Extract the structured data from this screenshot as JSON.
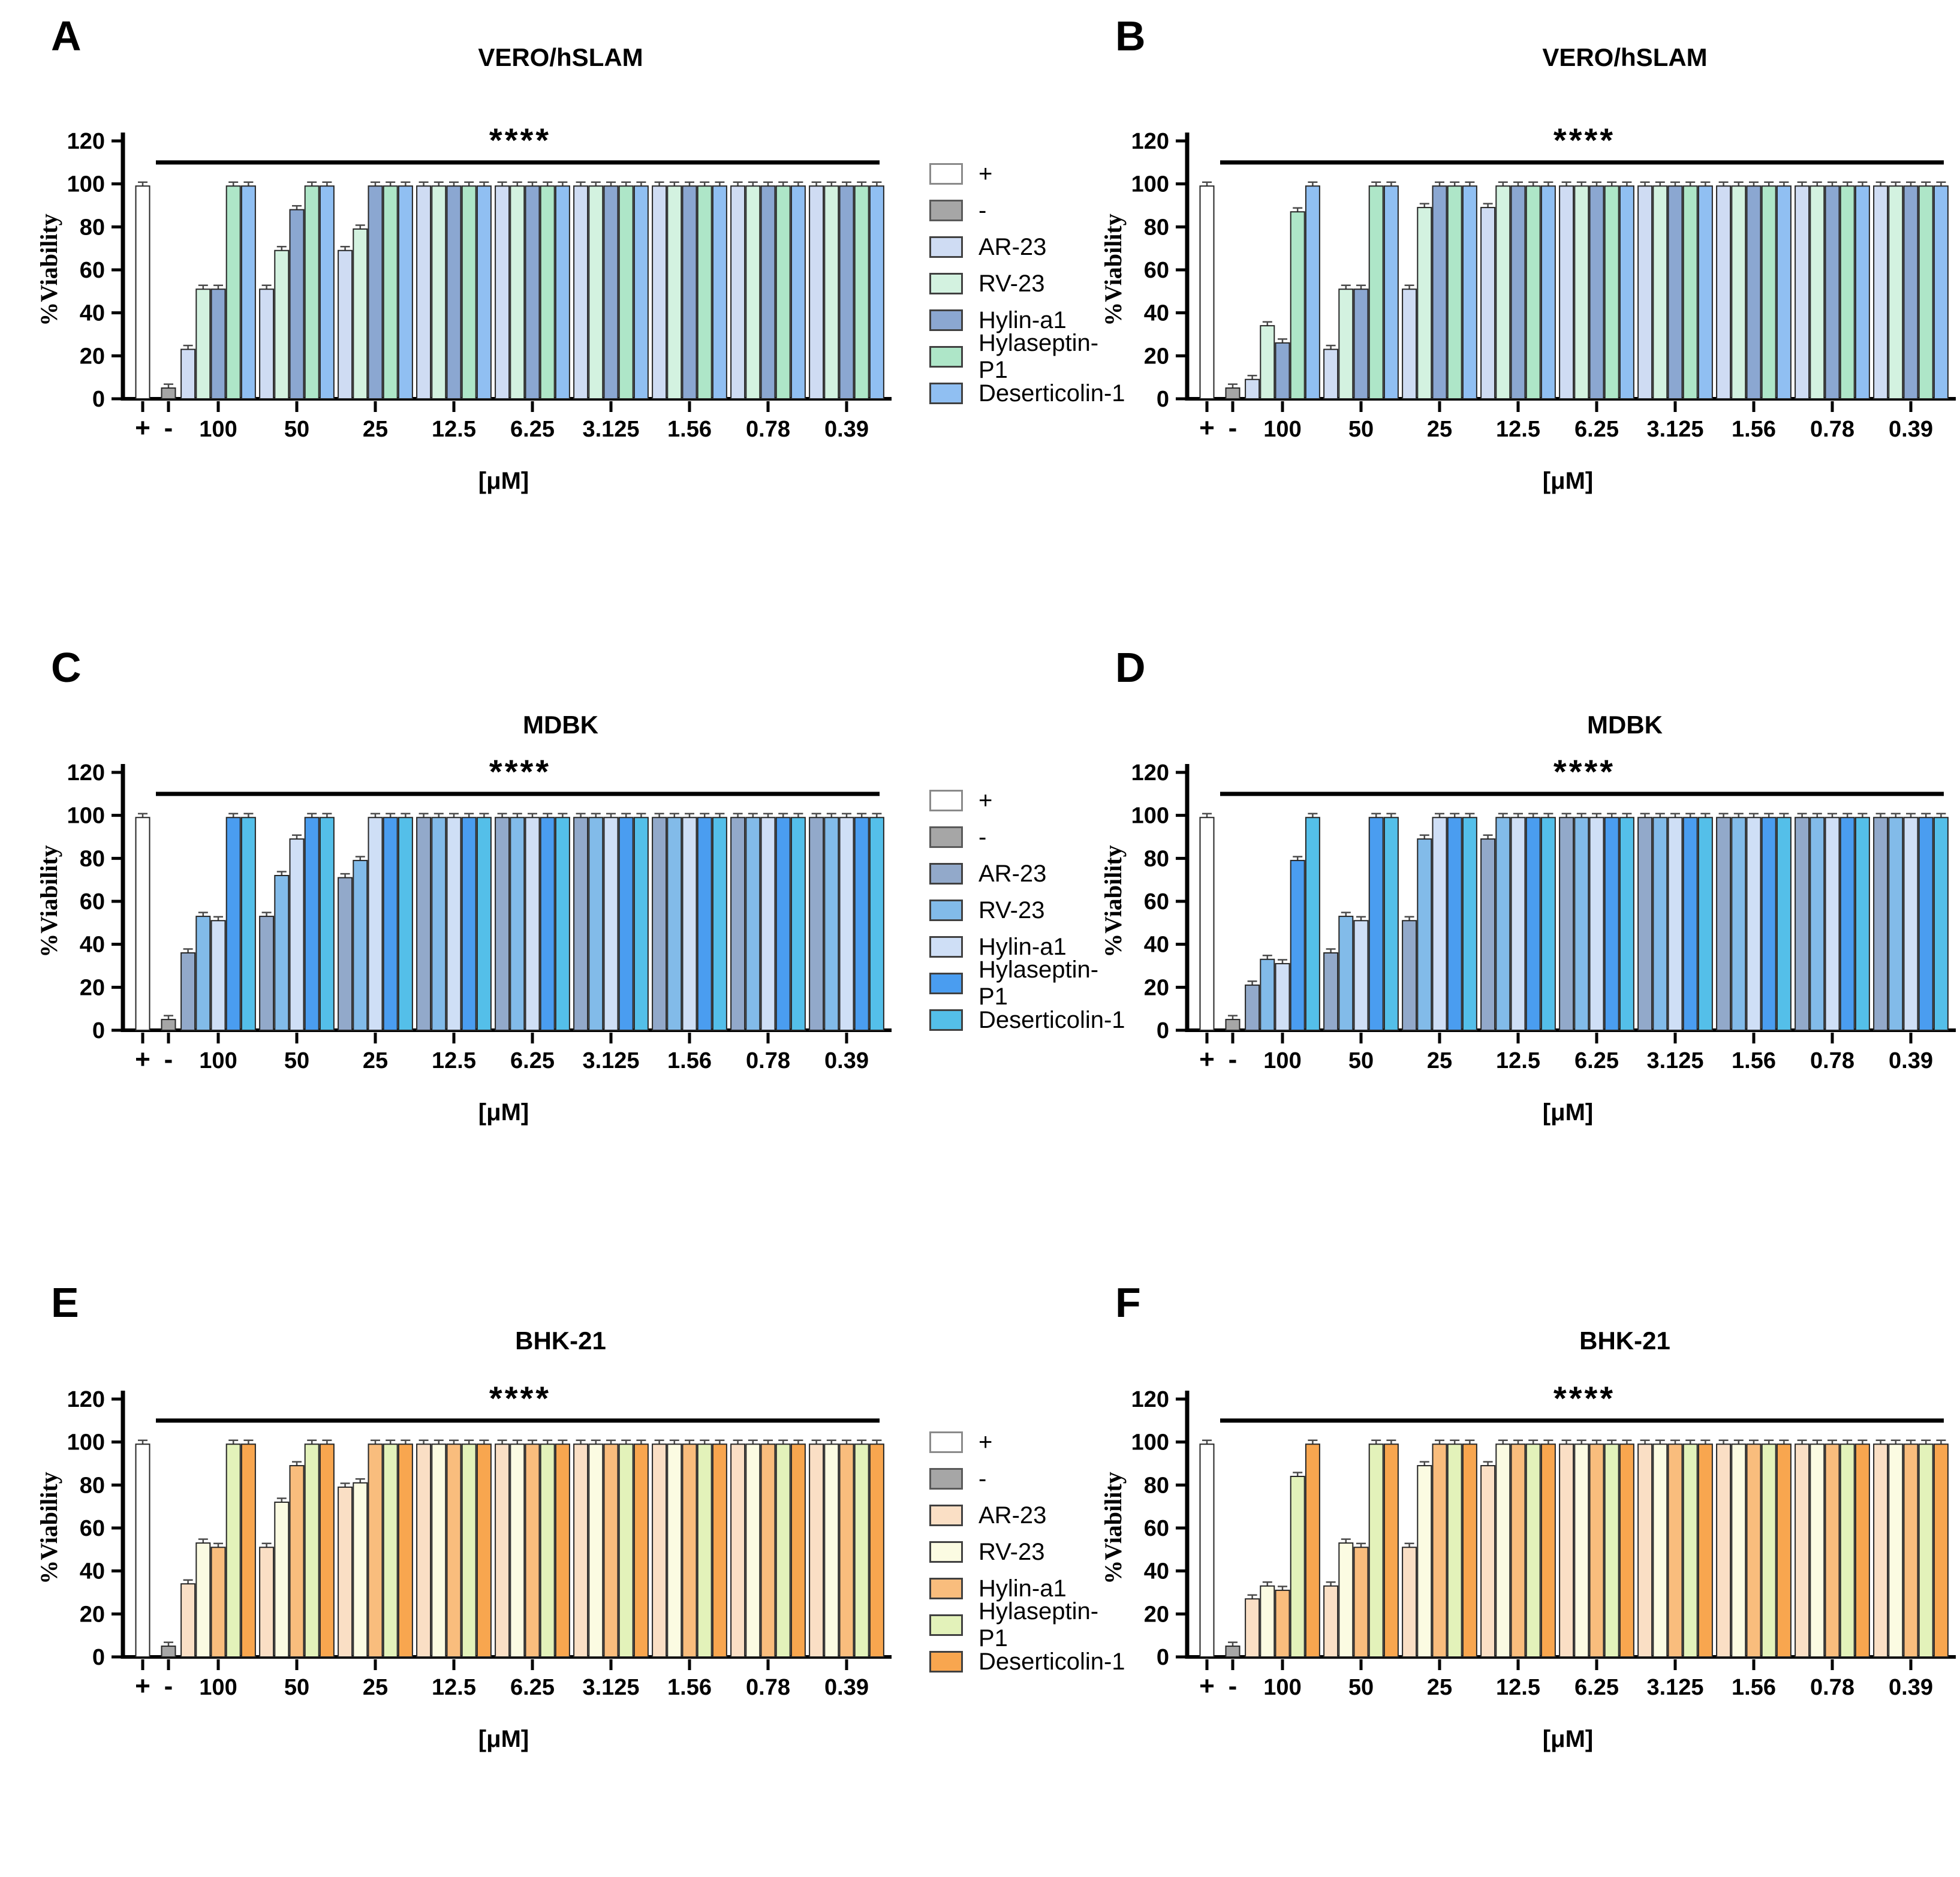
{
  "figure": {
    "xlabel": "[μM]",
    "ylabel": "%Viability",
    "significance": "****",
    "x_categories_full": [
      "+",
      "-",
      "100",
      "50",
      "25",
      "12.5",
      "6.25",
      "3.125",
      "1.56",
      "0.78",
      "0.39"
    ],
    "bar_outline_color": "#262626",
    "error_bar_color": "#4a4a4a",
    "axis_color": "#000000"
  },
  "legends": [
    {
      "entries": [
        {
          "label": "+",
          "color": "#ffffff"
        },
        {
          "label": "-",
          "color": "#a6a6a6"
        },
        {
          "label": "AR-23",
          "color": "#cfdcf3"
        },
        {
          "label": "RV-23",
          "color": "#d3f2e0"
        },
        {
          "label": "Hylin-a1",
          "color": "#8ba7d1"
        },
        {
          "label": "Hylaseptin-P1",
          "color": "#aee6c8"
        },
        {
          "label": "Deserticolin-1",
          "color": "#90bff2"
        }
      ]
    },
    {
      "entries": [
        {
          "label": "+",
          "color": "#ffffff"
        },
        {
          "label": "-",
          "color": "#a6a6a6"
        },
        {
          "label": "AR-23",
          "color": "#92a9ca"
        },
        {
          "label": "RV-23",
          "color": "#82bbe9"
        },
        {
          "label": "Hylin-a1",
          "color": "#cfdff6"
        },
        {
          "label": "Hylaseptin-P1",
          "color": "#4a9df0"
        },
        {
          "label": "Deserticolin-1",
          "color": "#54bfe9"
        }
      ]
    },
    {
      "entries": [
        {
          "label": "+",
          "color": "#ffffff"
        },
        {
          "label": "-",
          "color": "#a6a6a6"
        },
        {
          "label": "AR-23",
          "color": "#fadfc5"
        },
        {
          "label": "RV-23",
          "color": "#fbfbe2"
        },
        {
          "label": "Hylin-a1",
          "color": "#f9bd7d"
        },
        {
          "label": "Hylaseptin-P1",
          "color": "#e3f2ba"
        },
        {
          "label": "Deserticolin-1",
          "color": "#f8a64f"
        }
      ]
    }
  ],
  "chart_data": [
    {
      "panel": "A",
      "type": "bar",
      "title": "VERO/hSLAM",
      "ylabel": "%Viability",
      "xlabel": "[μM]",
      "significance": "****",
      "ylim": [
        0,
        120
      ],
      "yticks": [
        0,
        20,
        40,
        60,
        80,
        100,
        120
      ],
      "controls": [
        {
          "label": "+",
          "value": 99,
          "color": "#ffffff"
        },
        {
          "label": "-",
          "value": 5,
          "color": "#a6a6a6"
        }
      ],
      "categories": [
        "100",
        "50",
        "25",
        "12.5",
        "6.25",
        "3.125",
        "1.56",
        "0.78",
        "0.39"
      ],
      "series": [
        {
          "name": "AR-23",
          "color": "#cfdcf3",
          "values": [
            23,
            51,
            69,
            99,
            99,
            99,
            99,
            99,
            99
          ]
        },
        {
          "name": "RV-23",
          "color": "#d3f2e0",
          "values": [
            51,
            69,
            79,
            99,
            99,
            99,
            99,
            99,
            99
          ]
        },
        {
          "name": "Hylin-a1",
          "color": "#8ba7d1",
          "values": [
            51,
            88,
            99,
            99,
            99,
            99,
            99,
            99,
            99
          ]
        },
        {
          "name": "Hylaseptin-P1",
          "color": "#aee6c8",
          "values": [
            99,
            99,
            99,
            99,
            99,
            99,
            99,
            99,
            99
          ]
        },
        {
          "name": "Deserticolin-1",
          "color": "#90bff2",
          "values": [
            99,
            99,
            99,
            99,
            99,
            99,
            99,
            99,
            99
          ]
        }
      ]
    },
    {
      "panel": "B",
      "type": "bar",
      "title": "VERO/hSLAM",
      "ylabel": "%Viability",
      "xlabel": "[μM]",
      "significance": "****",
      "ylim": [
        0,
        120
      ],
      "yticks": [
        0,
        20,
        40,
        60,
        80,
        100,
        120
      ],
      "controls": [
        {
          "label": "+",
          "value": 99,
          "color": "#ffffff"
        },
        {
          "label": "-",
          "value": 5,
          "color": "#a6a6a6"
        }
      ],
      "categories": [
        "100",
        "50",
        "25",
        "12.5",
        "6.25",
        "3.125",
        "1.56",
        "0.78",
        "0.39"
      ],
      "series": [
        {
          "name": "AR-23",
          "color": "#cfdcf3",
          "values": [
            9,
            23,
            51,
            89,
            99,
            99,
            99,
            99,
            99
          ]
        },
        {
          "name": "RV-23",
          "color": "#d3f2e0",
          "values": [
            34,
            51,
            89,
            99,
            99,
            99,
            99,
            99,
            99
          ]
        },
        {
          "name": "Hylin-a1",
          "color": "#8ba7d1",
          "values": [
            26,
            51,
            99,
            99,
            99,
            99,
            99,
            99,
            99
          ]
        },
        {
          "name": "Hylaseptin-P1",
          "color": "#aee6c8",
          "values": [
            87,
            99,
            99,
            99,
            99,
            99,
            99,
            99,
            99
          ]
        },
        {
          "name": "Deserticolin-1",
          "color": "#90bff2",
          "values": [
            99,
            99,
            99,
            99,
            99,
            99,
            99,
            99,
            99
          ]
        }
      ]
    },
    {
      "panel": "C",
      "type": "bar",
      "title": "MDBK",
      "ylabel": "%Viability",
      "xlabel": "[μM]",
      "significance": "****",
      "ylim": [
        0,
        120
      ],
      "yticks": [
        0,
        20,
        40,
        60,
        80,
        100,
        120
      ],
      "controls": [
        {
          "label": "+",
          "value": 99,
          "color": "#ffffff"
        },
        {
          "label": "-",
          "value": 5,
          "color": "#a6a6a6"
        }
      ],
      "categories": [
        "100",
        "50",
        "25",
        "12.5",
        "6.25",
        "3.125",
        "1.56",
        "0.78",
        "0.39"
      ],
      "series": [
        {
          "name": "AR-23",
          "color": "#92a9ca",
          "values": [
            36,
            53,
            71,
            99,
            99,
            99,
            99,
            99,
            99
          ]
        },
        {
          "name": "RV-23",
          "color": "#82bbe9",
          "values": [
            53,
            72,
            79,
            99,
            99,
            99,
            99,
            99,
            99
          ]
        },
        {
          "name": "Hylin-a1",
          "color": "#cfdff6",
          "values": [
            51,
            89,
            99,
            99,
            99,
            99,
            99,
            99,
            99
          ]
        },
        {
          "name": "Hylaseptin-P1",
          "color": "#4a9df0",
          "values": [
            99,
            99,
            99,
            99,
            99,
            99,
            99,
            99,
            99
          ]
        },
        {
          "name": "Deserticolin-1",
          "color": "#54bfe9",
          "values": [
            99,
            99,
            99,
            99,
            99,
            99,
            99,
            99,
            99
          ]
        }
      ]
    },
    {
      "panel": "D",
      "type": "bar",
      "title": "MDBK",
      "ylabel": "%Viability",
      "xlabel": "[μM]",
      "significance": "****",
      "ylim": [
        0,
        120
      ],
      "yticks": [
        0,
        20,
        40,
        60,
        80,
        100,
        120
      ],
      "controls": [
        {
          "label": "+",
          "value": 99,
          "color": "#ffffff"
        },
        {
          "label": "-",
          "value": 5,
          "color": "#a6a6a6"
        }
      ],
      "categories": [
        "100",
        "50",
        "25",
        "12.5",
        "6.25",
        "3.125",
        "1.56",
        "0.78",
        "0.39"
      ],
      "series": [
        {
          "name": "AR-23",
          "color": "#92a9ca",
          "values": [
            21,
            36,
            51,
            89,
            99,
            99,
            99,
            99,
            99
          ]
        },
        {
          "name": "RV-23",
          "color": "#82bbe9",
          "values": [
            33,
            53,
            89,
            99,
            99,
            99,
            99,
            99,
            99
          ]
        },
        {
          "name": "Hylin-a1",
          "color": "#cfdff6",
          "values": [
            31,
            51,
            99,
            99,
            99,
            99,
            99,
            99,
            99
          ]
        },
        {
          "name": "Hylaseptin-P1",
          "color": "#4a9df0",
          "values": [
            79,
            99,
            99,
            99,
            99,
            99,
            99,
            99,
            99
          ]
        },
        {
          "name": "Deserticolin-1",
          "color": "#54bfe9",
          "values": [
            99,
            99,
            99,
            99,
            99,
            99,
            99,
            99,
            99
          ]
        }
      ]
    },
    {
      "panel": "E",
      "type": "bar",
      "title": "BHK-21",
      "ylabel": "%Viability",
      "xlabel": "[μM]",
      "significance": "****",
      "ylim": [
        0,
        120
      ],
      "yticks": [
        0,
        20,
        40,
        60,
        80,
        100,
        120
      ],
      "controls": [
        {
          "label": "+",
          "value": 99,
          "color": "#ffffff"
        },
        {
          "label": "-",
          "value": 5,
          "color": "#a6a6a6"
        }
      ],
      "categories": [
        "100",
        "50",
        "25",
        "12.5",
        "6.25",
        "3.125",
        "1.56",
        "0.78",
        "0.39"
      ],
      "series": [
        {
          "name": "AR-23",
          "color": "#fadfc5",
          "values": [
            34,
            51,
            79,
            99,
            99,
            99,
            99,
            99,
            99
          ]
        },
        {
          "name": "RV-23",
          "color": "#fbfbe2",
          "values": [
            53,
            72,
            81,
            99,
            99,
            99,
            99,
            99,
            99
          ]
        },
        {
          "name": "Hylin-a1",
          "color": "#f9bd7d",
          "values": [
            51,
            89,
            99,
            99,
            99,
            99,
            99,
            99,
            99
          ]
        },
        {
          "name": "Hylaseptin-P1",
          "color": "#e3f2ba",
          "values": [
            99,
            99,
            99,
            99,
            99,
            99,
            99,
            99,
            99
          ]
        },
        {
          "name": "Deserticolin-1",
          "color": "#f8a64f",
          "values": [
            99,
            99,
            99,
            99,
            99,
            99,
            99,
            99,
            99
          ]
        }
      ]
    },
    {
      "panel": "F",
      "type": "bar",
      "title": "BHK-21",
      "ylabel": "%Viability",
      "xlabel": "[μM]",
      "significance": "****",
      "ylim": [
        0,
        120
      ],
      "yticks": [
        0,
        20,
        40,
        60,
        80,
        100,
        120
      ],
      "controls": [
        {
          "label": "+",
          "value": 99,
          "color": "#ffffff"
        },
        {
          "label": "-",
          "value": 5,
          "color": "#a6a6a6"
        }
      ],
      "categories": [
        "100",
        "50",
        "25",
        "12.5",
        "6.25",
        "3.125",
        "1.56",
        "0.78",
        "0.39"
      ],
      "series": [
        {
          "name": "AR-23",
          "color": "#fadfc5",
          "values": [
            27,
            33,
            51,
            89,
            99,
            99,
            99,
            99,
            99
          ]
        },
        {
          "name": "RV-23",
          "color": "#fbfbe2",
          "values": [
            33,
            53,
            89,
            99,
            99,
            99,
            99,
            99,
            99
          ]
        },
        {
          "name": "Hylin-a1",
          "color": "#f9bd7d",
          "values": [
            31,
            51,
            99,
            99,
            99,
            99,
            99,
            99,
            99
          ]
        },
        {
          "name": "Hylaseptin-P1",
          "color": "#e3f2ba",
          "values": [
            84,
            99,
            99,
            99,
            99,
            99,
            99,
            99,
            99
          ]
        },
        {
          "name": "Deserticolin-1",
          "color": "#f8a64f",
          "values": [
            99,
            99,
            99,
            99,
            99,
            99,
            99,
            99,
            99
          ]
        }
      ]
    }
  ]
}
